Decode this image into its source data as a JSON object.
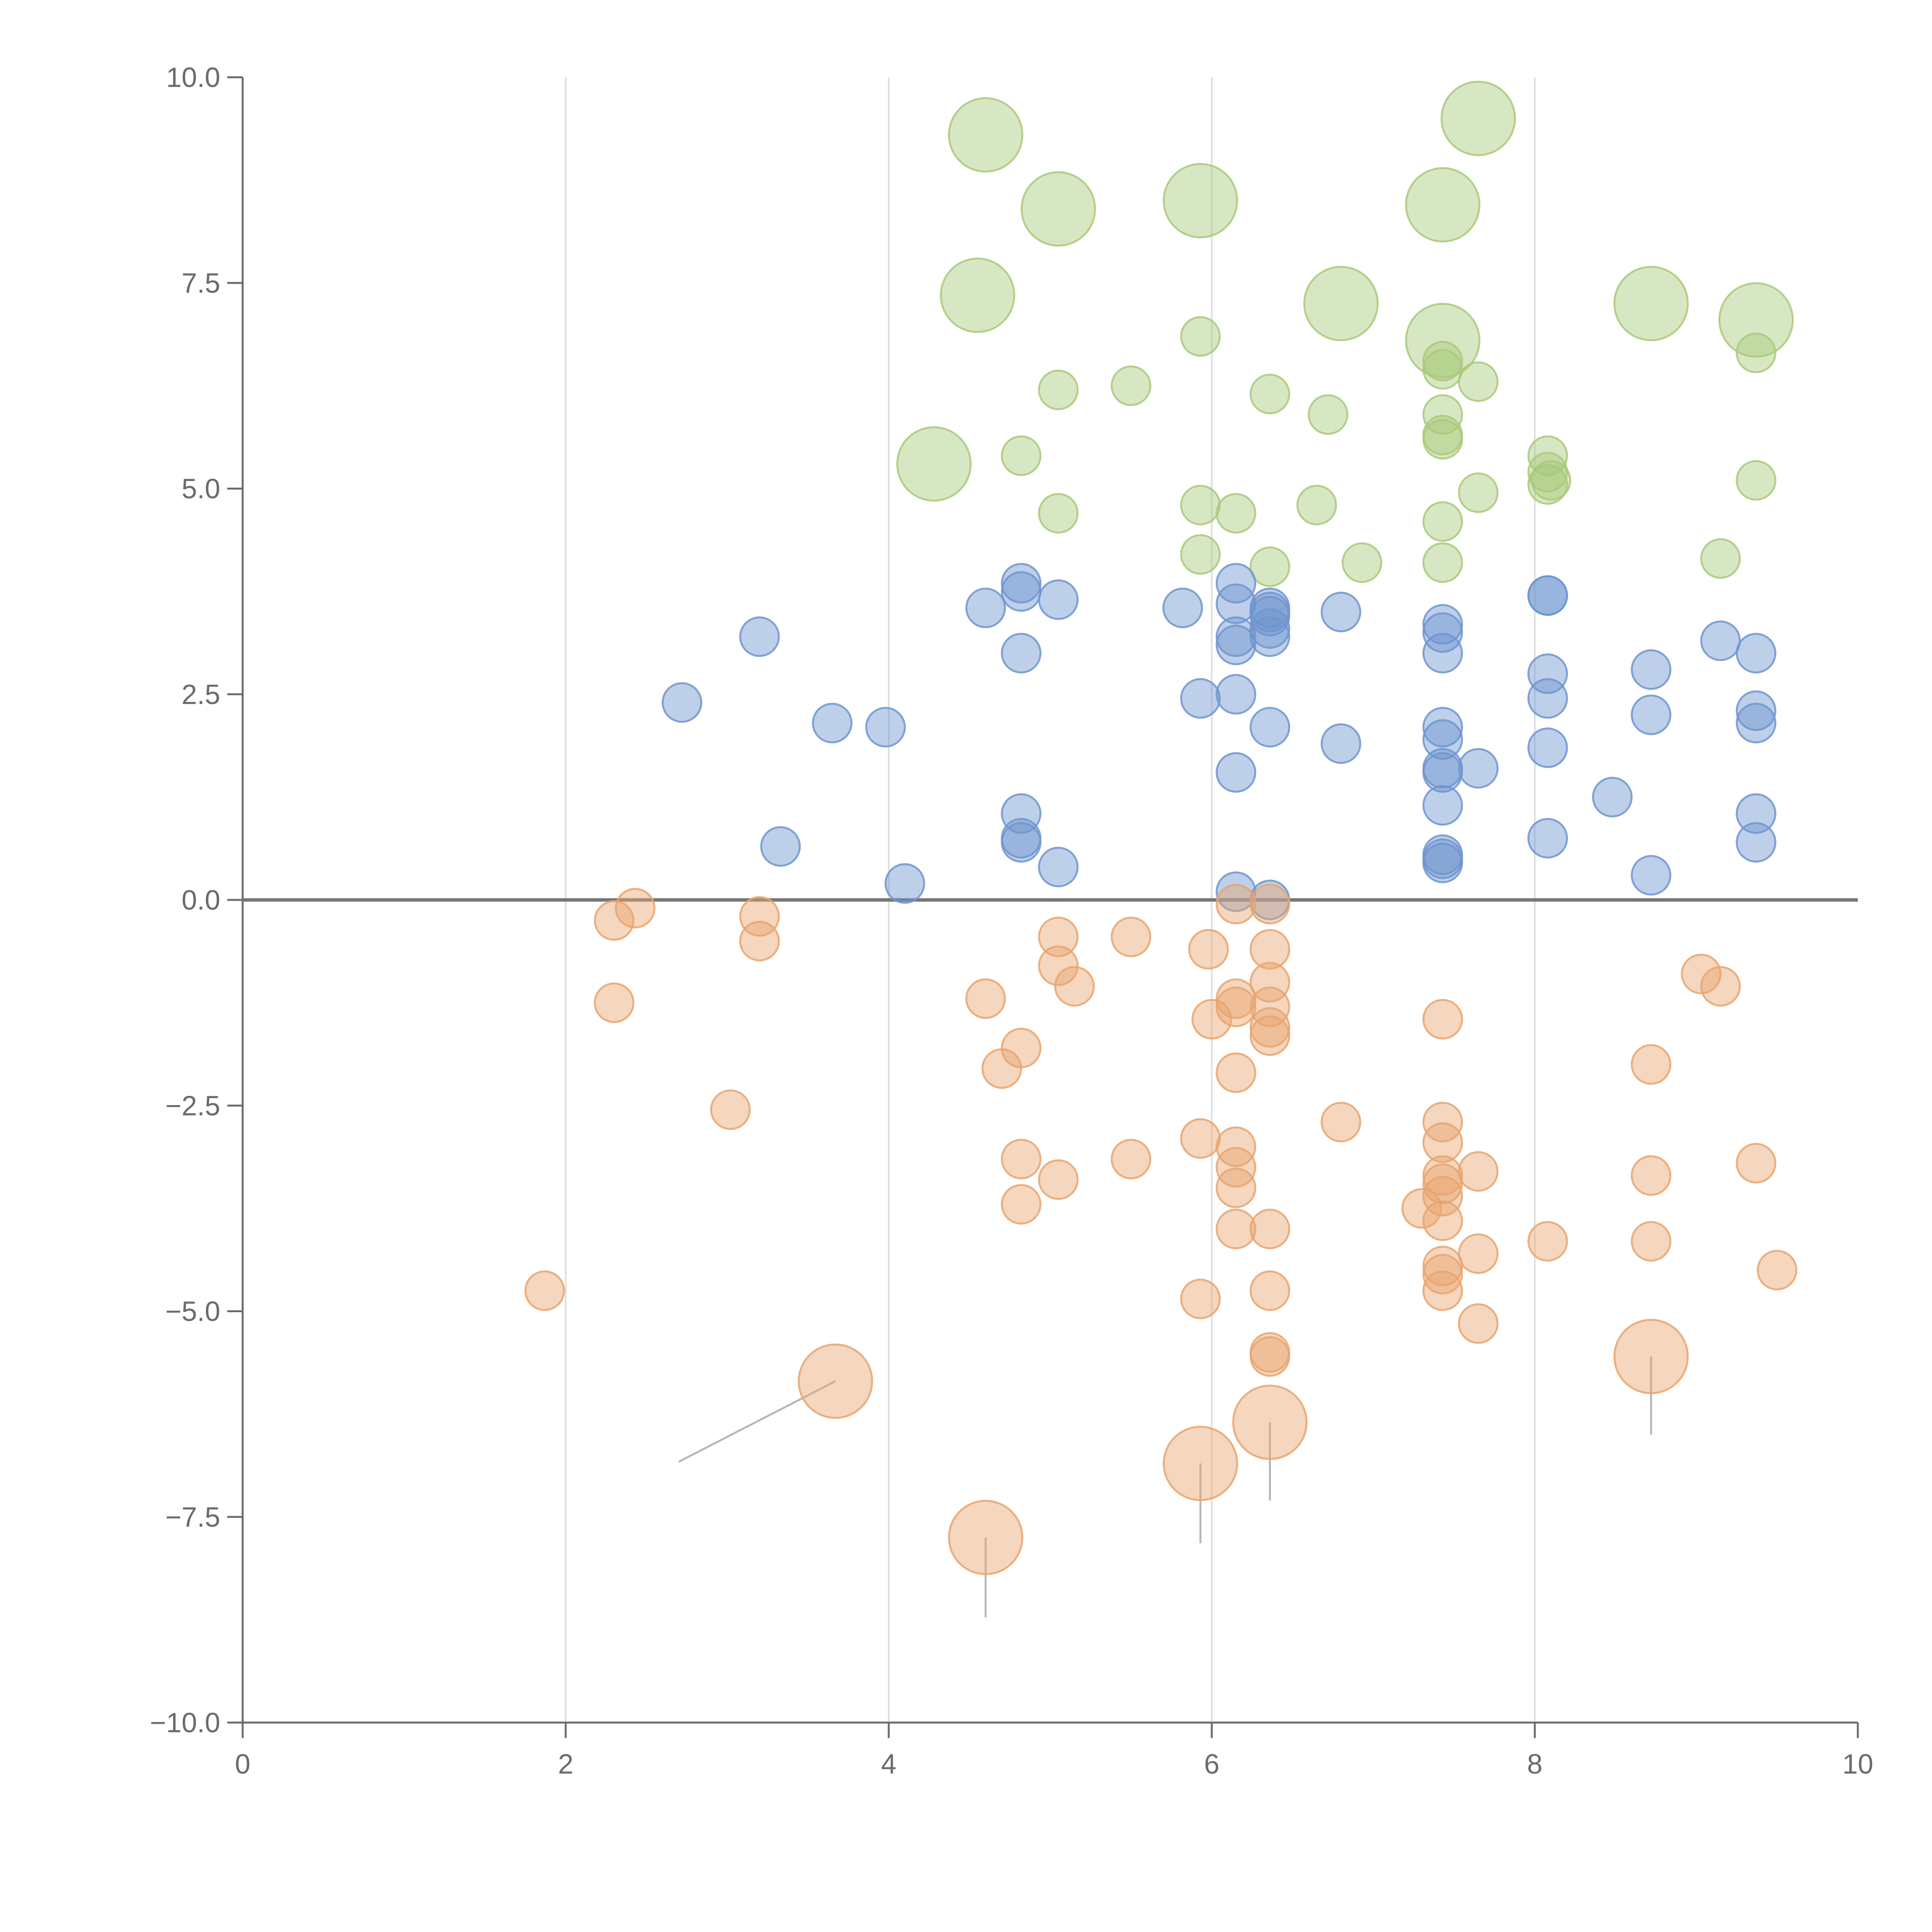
{
  "chart_data": {
    "type": "scatter",
    "title": "",
    "xlabel": "",
    "ylabel": "",
    "xlim": [
      0,
      10
    ],
    "ylim": [
      -10,
      10
    ],
    "grid": "vertical",
    "x_ticks": [
      0,
      2,
      4,
      6,
      8,
      10
    ],
    "x_tick_labels": [
      "0",
      "2",
      "4",
      "6",
      "8",
      "10"
    ],
    "y_ticks": [
      10,
      7.5,
      5,
      2.5,
      0,
      -2.5,
      -5,
      -7.5,
      -10
    ],
    "y_tick_labels": [
      "10.0",
      "7.5",
      "5.0",
      "2.5",
      "0.0",
      "−2.5",
      "−5.0",
      "−7.5",
      "−10.0"
    ],
    "baseline_y": 0,
    "colors": {
      "green": "#a9c97a",
      "blue": "#6f95cf",
      "orange": "#e8a46f",
      "axis": "#6b6b6b",
      "grid": "#dddddd",
      "leader": "#b5b5b5"
    },
    "series": [
      {
        "name": "green",
        "points": [
          [
            4.6,
            9.3,
            1
          ],
          [
            7.65,
            9.5,
            1
          ],
          [
            5.05,
            8.4,
            1
          ],
          [
            5.93,
            8.5,
            1
          ],
          [
            7.43,
            8.45,
            1
          ],
          [
            4.55,
            7.35,
            1
          ],
          [
            6.8,
            7.25,
            1
          ],
          [
            8.72,
            7.25,
            1
          ],
          [
            9.37,
            7.05,
            1
          ],
          [
            7.43,
            6.8,
            1
          ],
          [
            4.28,
            5.3,
            1
          ],
          [
            5.93,
            6.85,
            0
          ],
          [
            5.05,
            6.2,
            0
          ],
          [
            5.5,
            6.25,
            0
          ],
          [
            6.36,
            6.15,
            0
          ],
          [
            6.72,
            5.9,
            0
          ],
          [
            7.43,
            6.55,
            0
          ],
          [
            7.43,
            6.45,
            0
          ],
          [
            7.65,
            6.3,
            0
          ],
          [
            7.43,
            5.9,
            0
          ],
          [
            7.43,
            5.65,
            0
          ],
          [
            7.43,
            5.6,
            0
          ],
          [
            9.37,
            6.65,
            0
          ],
          [
            4.82,
            5.4,
            0
          ],
          [
            8.08,
            5.4,
            0
          ],
          [
            8.08,
            5.2,
            0
          ],
          [
            8.1,
            5.1,
            0
          ],
          [
            8.08,
            5.05,
            0
          ],
          [
            9.37,
            5.1,
            0
          ],
          [
            5.05,
            4.7,
            0
          ],
          [
            5.93,
            4.8,
            0
          ],
          [
            6.15,
            4.7,
            0
          ],
          [
            6.65,
            4.8,
            0
          ],
          [
            7.65,
            4.95,
            0
          ],
          [
            7.43,
            4.6,
            0
          ],
          [
            5.93,
            4.2,
            0
          ],
          [
            6.36,
            4.05,
            0
          ],
          [
            6.93,
            4.1,
            0
          ],
          [
            7.43,
            4.1,
            0
          ],
          [
            9.15,
            4.15,
            0
          ]
        ]
      },
      {
        "name": "blue",
        "points": [
          [
            4.82,
            3.85,
            0
          ],
          [
            4.82,
            3.75,
            0
          ],
          [
            4.6,
            3.55,
            0
          ],
          [
            5.05,
            3.65,
            0
          ],
          [
            5.82,
            3.55,
            0
          ],
          [
            6.15,
            3.85,
            0
          ],
          [
            6.15,
            3.6,
            0
          ],
          [
            6.36,
            3.55,
            0
          ],
          [
            6.36,
            3.5,
            0
          ],
          [
            6.36,
            3.45,
            0
          ],
          [
            6.36,
            3.3,
            0
          ],
          [
            6.36,
            3.2,
            0
          ],
          [
            6.15,
            3.2,
            0
          ],
          [
            6.15,
            3.1,
            0
          ],
          [
            6.8,
            3.5,
            0
          ],
          [
            7.43,
            3.35,
            0
          ],
          [
            7.43,
            3.25,
            0
          ],
          [
            7.43,
            3.0,
            0
          ],
          [
            8.08,
            3.7,
            0
          ],
          [
            8.08,
            3.7,
            0
          ],
          [
            3.2,
            3.2,
            0
          ],
          [
            4.82,
            3.0,
            0
          ],
          [
            9.15,
            3.15,
            0
          ],
          [
            9.37,
            3.0,
            0
          ],
          [
            8.72,
            2.8,
            0
          ],
          [
            8.08,
            2.75,
            0
          ],
          [
            2.72,
            2.4,
            0
          ],
          [
            3.65,
            2.15,
            0
          ],
          [
            3.98,
            2.1,
            0
          ],
          [
            5.93,
            2.45,
            0
          ],
          [
            6.15,
            2.5,
            0
          ],
          [
            6.36,
            2.1,
            0
          ],
          [
            7.43,
            2.1,
            0
          ],
          [
            7.43,
            1.95,
            0
          ],
          [
            8.08,
            2.45,
            0
          ],
          [
            8.72,
            2.25,
            0
          ],
          [
            9.37,
            2.3,
            0
          ],
          [
            9.37,
            2.15,
            0
          ],
          [
            6.8,
            1.9,
            0
          ],
          [
            8.08,
            1.85,
            0
          ],
          [
            6.15,
            1.55,
            0
          ],
          [
            7.43,
            1.6,
            0
          ],
          [
            7.43,
            1.55,
            0
          ],
          [
            7.65,
            1.6,
            0
          ],
          [
            8.48,
            1.25,
            0
          ],
          [
            7.43,
            1.15,
            0
          ],
          [
            4.82,
            1.05,
            0
          ],
          [
            9.37,
            1.05,
            0
          ],
          [
            4.82,
            0.75,
            0
          ],
          [
            4.82,
            0.7,
            0
          ],
          [
            3.33,
            0.65,
            0
          ],
          [
            9.37,
            0.7,
            0
          ],
          [
            8.08,
            0.75,
            0
          ],
          [
            7.43,
            0.55,
            0
          ],
          [
            7.43,
            0.5,
            0
          ],
          [
            7.43,
            0.45,
            0
          ],
          [
            5.05,
            0.4,
            0
          ],
          [
            8.72,
            0.3,
            0
          ],
          [
            4.1,
            0.2,
            0
          ],
          [
            6.15,
            0.1,
            0
          ],
          [
            6.36,
            0.0,
            0
          ]
        ]
      },
      {
        "name": "orange",
        "points": [
          [
            2.43,
            -0.1,
            0
          ],
          [
            2.3,
            -0.25,
            0
          ],
          [
            3.2,
            -0.2,
            0
          ],
          [
            3.2,
            -0.5,
            0
          ],
          [
            6.15,
            -0.05,
            0
          ],
          [
            6.36,
            -0.05,
            0
          ],
          [
            5.05,
            -0.45,
            0
          ],
          [
            5.5,
            -0.45,
            0
          ],
          [
            5.05,
            -0.8,
            0
          ],
          [
            5.15,
            -1.05,
            0
          ],
          [
            5.98,
            -0.6,
            0
          ],
          [
            6.36,
            -0.6,
            0
          ],
          [
            6.36,
            -1.0,
            0
          ],
          [
            6.15,
            -1.2,
            0
          ],
          [
            6.15,
            -1.3,
            0
          ],
          [
            6.36,
            -1.3,
            0
          ],
          [
            6.36,
            -1.55,
            0
          ],
          [
            6.36,
            -1.65,
            0
          ],
          [
            6.0,
            -1.45,
            0
          ],
          [
            2.3,
            -1.25,
            0
          ],
          [
            4.6,
            -1.2,
            0
          ],
          [
            4.82,
            -1.8,
            0
          ],
          [
            4.7,
            -2.05,
            0
          ],
          [
            6.15,
            -2.1,
            0
          ],
          [
            9.03,
            -0.9,
            0
          ],
          [
            9.15,
            -1.05,
            0
          ],
          [
            7.43,
            -1.45,
            0
          ],
          [
            8.72,
            -2.0,
            0
          ],
          [
            3.02,
            -2.55,
            0
          ],
          [
            6.8,
            -2.7,
            0
          ],
          [
            7.43,
            -2.7,
            0
          ],
          [
            5.93,
            -2.9,
            0
          ],
          [
            6.15,
            -3.0,
            0
          ],
          [
            7.43,
            -2.95,
            0
          ],
          [
            4.82,
            -3.15,
            0
          ],
          [
            5.5,
            -3.15,
            0
          ],
          [
            6.15,
            -3.25,
            0
          ],
          [
            5.05,
            -3.4,
            0
          ],
          [
            6.15,
            -3.5,
            0
          ],
          [
            7.43,
            -3.35,
            0
          ],
          [
            7.43,
            -3.45,
            0
          ],
          [
            7.43,
            -3.6,
            0
          ],
          [
            7.65,
            -3.3,
            0
          ],
          [
            8.72,
            -3.35,
            0
          ],
          [
            9.37,
            -3.2,
            0
          ],
          [
            7.3,
            -3.75,
            0
          ],
          [
            7.43,
            -3.9,
            0
          ],
          [
            4.82,
            -3.7,
            0
          ],
          [
            6.15,
            -4.0,
            0
          ],
          [
            6.36,
            -4.0,
            0
          ],
          [
            7.43,
            -4.45,
            0
          ],
          [
            7.43,
            -4.55,
            0
          ],
          [
            7.65,
            -4.3,
            0
          ],
          [
            8.08,
            -4.15,
            0
          ],
          [
            8.72,
            -4.15,
            0
          ],
          [
            9.5,
            -4.5,
            0
          ],
          [
            1.87,
            -4.75,
            0
          ],
          [
            5.93,
            -4.85,
            0
          ],
          [
            6.36,
            -4.75,
            0
          ],
          [
            7.43,
            -4.75,
            0
          ],
          [
            7.65,
            -5.15,
            0
          ],
          [
            6.36,
            -5.5,
            0
          ],
          [
            6.36,
            -5.55,
            0
          ],
          [
            3.67,
            -5.85,
            1
          ],
          [
            8.72,
            -5.55,
            1
          ],
          [
            6.36,
            -6.35,
            1
          ],
          [
            5.93,
            -6.85,
            1
          ],
          [
            4.6,
            -7.75,
            1
          ]
        ]
      }
    ],
    "leaders": [
      {
        "series": "orange",
        "from": [
          3.67,
          -5.85
        ],
        "to": [
          2.7,
          -6.83
        ]
      },
      {
        "series": "orange",
        "from": [
          4.6,
          -7.75
        ],
        "to": [
          4.6,
          -8.72
        ]
      },
      {
        "series": "orange",
        "from": [
          5.93,
          -6.85
        ],
        "to": [
          5.93,
          -7.82
        ]
      },
      {
        "series": "orange",
        "from": [
          6.36,
          -6.35
        ],
        "to": [
          6.36,
          -7.3
        ]
      },
      {
        "series": "orange",
        "from": [
          8.72,
          -5.55
        ],
        "to": [
          8.72,
          -6.5
        ]
      }
    ]
  }
}
